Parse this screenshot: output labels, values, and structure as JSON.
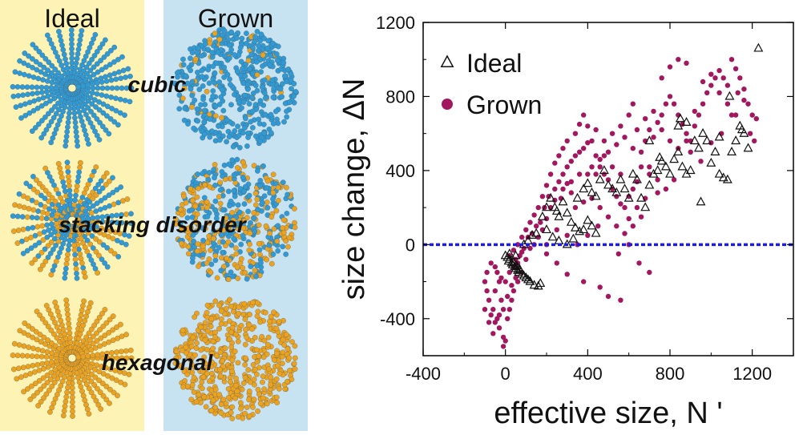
{
  "panels": {
    "ideal_header": "Ideal",
    "grown_header": "Grown",
    "bg_ideal": "#fdf3b4",
    "bg_grown": "#c7e2f1"
  },
  "structures": [
    {
      "label": "cubic",
      "ideal_mix": 0.0,
      "grown_mix": 0.06
    },
    {
      "label": "stacking disorder",
      "ideal_mix": 0.45,
      "grown_mix": 0.5
    },
    {
      "label": "hexagonal",
      "ideal_mix": 1.0,
      "grown_mix": 1.0
    }
  ],
  "colors": {
    "cubic_blue": "#2f9bd6",
    "hex_orange": "#eba31f",
    "grown_marker": "#a3175f",
    "zero_line": "#1a1aee"
  },
  "chart_data": {
    "type": "scatter",
    "xlabel": "effective size, N '",
    "ylabel": "size change, ΔN",
    "xlim": [
      -400,
      1400
    ],
    "ylim": [
      -600,
      1200
    ],
    "xticks": [
      -400,
      0,
      400,
      800,
      1200
    ],
    "yticks": [
      -400,
      0,
      400,
      800,
      1200
    ],
    "zero_line": 0,
    "legend_position": "top-left",
    "series": [
      {
        "name": "Ideal",
        "marker": "open-triangle",
        "points": [
          [
            0,
            -60
          ],
          [
            10,
            -70
          ],
          [
            15,
            -90
          ],
          [
            20,
            -80
          ],
          [
            30,
            -100
          ],
          [
            35,
            -110
          ],
          [
            40,
            -95
          ],
          [
            45,
            -120
          ],
          [
            50,
            -130
          ],
          [
            55,
            -115
          ],
          [
            60,
            -140
          ],
          [
            65,
            -150
          ],
          [
            70,
            -135
          ],
          [
            80,
            -160
          ],
          [
            90,
            -170
          ],
          [
            100,
            -180
          ],
          [
            110,
            -190
          ],
          [
            120,
            -200
          ],
          [
            140,
            -220
          ],
          [
            160,
            -225
          ],
          [
            170,
            -210
          ],
          [
            20,
            -50
          ],
          [
            50,
            -60
          ],
          [
            180,
            150
          ],
          [
            200,
            200
          ],
          [
            220,
            250
          ],
          [
            240,
            200
          ],
          [
            250,
            180
          ],
          [
            260,
            150
          ],
          [
            280,
            230
          ],
          [
            300,
            170
          ],
          [
            320,
            120
          ],
          [
            340,
            90
          ],
          [
            360,
            70
          ],
          [
            380,
            80
          ],
          [
            400,
            130
          ],
          [
            420,
            100
          ],
          [
            440,
            60
          ],
          [
            200,
            80
          ],
          [
            230,
            40
          ],
          [
            260,
            20
          ],
          [
            300,
            0
          ],
          [
            330,
            30
          ],
          [
            150,
            60
          ],
          [
            130,
            50
          ],
          [
            110,
            20
          ],
          [
            90,
            0
          ],
          [
            350,
            250
          ],
          [
            380,
            300
          ],
          [
            400,
            330
          ],
          [
            420,
            280
          ],
          [
            440,
            260
          ],
          [
            460,
            350
          ],
          [
            480,
            400
          ],
          [
            500,
            320
          ],
          [
            520,
            300
          ],
          [
            540,
            280
          ],
          [
            560,
            350
          ],
          [
            580,
            300
          ],
          [
            600,
            250
          ],
          [
            620,
            380
          ],
          [
            640,
            350
          ],
          [
            660,
            250
          ],
          [
            680,
            200
          ],
          [
            700,
            320
          ],
          [
            720,
            380
          ],
          [
            740,
            400
          ],
          [
            760,
            450
          ],
          [
            780,
            420
          ],
          [
            800,
            380
          ],
          [
            820,
            460
          ],
          [
            840,
            500
          ],
          [
            860,
            420
          ],
          [
            880,
            380
          ],
          [
            900,
            400
          ],
          [
            920,
            560
          ],
          [
            940,
            520
          ],
          [
            960,
            600
          ],
          [
            980,
            560
          ],
          [
            1000,
            440
          ],
          [
            1020,
            500
          ],
          [
            1040,
            380
          ],
          [
            1060,
            360
          ],
          [
            1080,
            350
          ],
          [
            1100,
            500
          ],
          [
            1120,
            560
          ],
          [
            1140,
            640
          ],
          [
            1160,
            600
          ],
          [
            1180,
            520
          ],
          [
            1230,
            1060
          ],
          [
            1090,
            800
          ],
          [
            850,
            680
          ],
          [
            880,
            660
          ],
          [
            840,
            640
          ],
          [
            950,
            230
          ],
          [
            750,
            470
          ],
          [
            700,
            560
          ],
          [
            1150,
            620
          ],
          [
            1040,
            580
          ]
        ]
      },
      {
        "name": "Grown",
        "marker": "filled-circle",
        "points": [
          [
            -100,
            -200
          ],
          [
            -80,
            -300
          ],
          [
            -60,
            -350
          ],
          [
            -50,
            -250
          ],
          [
            -40,
            -400
          ],
          [
            -30,
            -450
          ],
          [
            -20,
            -300
          ],
          [
            -10,
            -500
          ],
          [
            0,
            -520
          ],
          [
            10,
            -400
          ],
          [
            20,
            -350
          ],
          [
            30,
            -300
          ],
          [
            40,
            -250
          ],
          [
            -90,
            -150
          ],
          [
            -70,
            -100
          ],
          [
            -40,
            -150
          ],
          [
            -20,
            -180
          ],
          [
            0,
            -200
          ],
          [
            20,
            -150
          ],
          [
            40,
            -120
          ],
          [
            60,
            -100
          ],
          [
            -10,
            -550
          ],
          [
            -60,
            -480
          ],
          [
            -80,
            -420
          ],
          [
            60,
            -200
          ],
          [
            80,
            -150
          ],
          [
            100,
            -80
          ],
          [
            80,
            -40
          ],
          [
            120,
            -20
          ],
          [
            140,
            0
          ],
          [
            160,
            40
          ],
          [
            180,
            80
          ],
          [
            200,
            140
          ],
          [
            220,
            200
          ],
          [
            240,
            300
          ],
          [
            260,
            340
          ],
          [
            280,
            380
          ],
          [
            300,
            420
          ],
          [
            320,
            450
          ],
          [
            340,
            480
          ],
          [
            360,
            500
          ],
          [
            380,
            520
          ],
          [
            400,
            550
          ],
          [
            420,
            560
          ],
          [
            440,
            480
          ],
          [
            460,
            420
          ],
          [
            480,
            380
          ],
          [
            500,
            350
          ],
          [
            520,
            300
          ],
          [
            540,
            260
          ],
          [
            560,
            220
          ],
          [
            580,
            200
          ],
          [
            600,
            260
          ],
          [
            620,
            300
          ],
          [
            640,
            340
          ],
          [
            660,
            500
          ],
          [
            680,
            560
          ],
          [
            700,
            620
          ],
          [
            720,
            580
          ],
          [
            740,
            660
          ],
          [
            760,
            700
          ],
          [
            780,
            760
          ],
          [
            800,
            800
          ],
          [
            820,
            760
          ],
          [
            840,
            700
          ],
          [
            860,
            650
          ],
          [
            880,
            600
          ],
          [
            900,
            560
          ],
          [
            920,
            640
          ],
          [
            940,
            700
          ],
          [
            960,
            760
          ],
          [
            980,
            820
          ],
          [
            1000,
            860
          ],
          [
            1020,
            900
          ],
          [
            1040,
            940
          ],
          [
            1060,
            900
          ],
          [
            1080,
            860
          ],
          [
            1100,
            1000
          ],
          [
            1120,
            950
          ],
          [
            1140,
            900
          ],
          [
            1160,
            840
          ],
          [
            1180,
            760
          ],
          [
            1200,
            700
          ],
          [
            1220,
            680
          ],
          [
            760,
            900
          ],
          [
            800,
            960
          ],
          [
            840,
            1000
          ],
          [
            880,
            980
          ],
          [
            600,
            700
          ],
          [
            620,
            760
          ],
          [
            560,
            640
          ],
          [
            520,
            600
          ],
          [
            480,
            560
          ],
          [
            440,
            620
          ],
          [
            400,
            640
          ],
          [
            380,
            700
          ],
          [
            360,
            650
          ],
          [
            340,
            600
          ],
          [
            300,
            560
          ],
          [
            280,
            520
          ],
          [
            260,
            480
          ],
          [
            240,
            440
          ],
          [
            220,
            380
          ],
          [
            200,
            320
          ],
          [
            180,
            260
          ],
          [
            160,
            200
          ],
          [
            140,
            160
          ],
          [
            120,
            120
          ],
          [
            100,
            80
          ],
          [
            80,
            40
          ],
          [
            60,
            0
          ],
          [
            40,
            -30
          ],
          [
            20,
            -60
          ],
          [
            500,
            -280
          ],
          [
            560,
            -300
          ],
          [
            460,
            -230
          ],
          [
            380,
            -200
          ],
          [
            300,
            -160
          ],
          [
            250,
            -100
          ],
          [
            200,
            -50
          ],
          [
            700,
            -150
          ],
          [
            650,
            -100
          ],
          [
            600,
            0
          ],
          [
            550,
            -50
          ],
          [
            450,
            100
          ],
          [
            400,
            50
          ],
          [
            350,
            0
          ],
          [
            300,
            50
          ],
          [
            250,
            80
          ],
          [
            200,
            0
          ],
          [
            900,
            500
          ],
          [
            950,
            450
          ],
          [
            1000,
            550
          ],
          [
            1050,
            600
          ],
          [
            1100,
            700
          ],
          [
            1130,
            820
          ],
          [
            1160,
            780
          ],
          [
            1190,
            600
          ],
          [
            1210,
            560
          ],
          [
            700,
            420
          ],
          [
            740,
            350
          ],
          [
            780,
            300
          ],
          [
            820,
            350
          ],
          [
            660,
            150
          ],
          [
            620,
            100
          ],
          [
            580,
            60
          ],
          [
            540,
            100
          ],
          [
            500,
            150
          ],
          [
            460,
            200
          ],
          [
            420,
            250
          ],
          [
            380,
            230
          ],
          [
            340,
            200
          ],
          [
            320,
            280
          ],
          [
            300,
            330
          ],
          [
            270,
            250
          ],
          [
            240,
            240
          ],
          [
            210,
            260
          ],
          [
            190,
            200
          ],
          [
            170,
            120
          ],
          [
            150,
            100
          ],
          [
            130,
            60
          ],
          [
            110,
            40
          ],
          [
            90,
            -20
          ],
          [
            70,
            -60
          ],
          [
            50,
            -80
          ],
          [
            -30,
            -200
          ],
          [
            -50,
            -120
          ],
          [
            -90,
            -250
          ],
          [
            -100,
            -350
          ],
          [
            -70,
            -380
          ],
          [
            -50,
            -420
          ],
          [
            -30,
            -380
          ],
          [
            -10,
            -350
          ],
          [
            10,
            -280
          ],
          [
            30,
            -220
          ],
          [
            50,
            -180
          ],
          [
            640,
            620
          ],
          [
            680,
            680
          ],
          [
            720,
            720
          ],
          [
            760,
            620
          ],
          [
            800,
            560
          ],
          [
            840,
            520
          ],
          [
            880,
            560
          ],
          [
            920,
            720
          ],
          [
            960,
            880
          ],
          [
            1000,
            920
          ],
          [
            1040,
            820
          ],
          [
            1080,
            760
          ],
          [
            1120,
            700
          ],
          [
            420,
            420
          ],
          [
            460,
            460
          ],
          [
            500,
            500
          ],
          [
            540,
            540
          ],
          [
            580,
            580
          ],
          [
            620,
            520
          ],
          [
            660,
            420
          ],
          [
            700,
            380
          ],
          [
            740,
            280
          ],
          [
            680,
            250
          ],
          [
            640,
            200
          ],
          [
            600,
            140
          ],
          [
            560,
            380
          ],
          [
            520,
            420
          ],
          [
            480,
            480
          ],
          [
            440,
            380
          ],
          [
            400,
            380
          ],
          [
            360,
            380
          ],
          [
            320,
            340
          ],
          [
            280,
            300
          ]
        ]
      }
    ]
  }
}
